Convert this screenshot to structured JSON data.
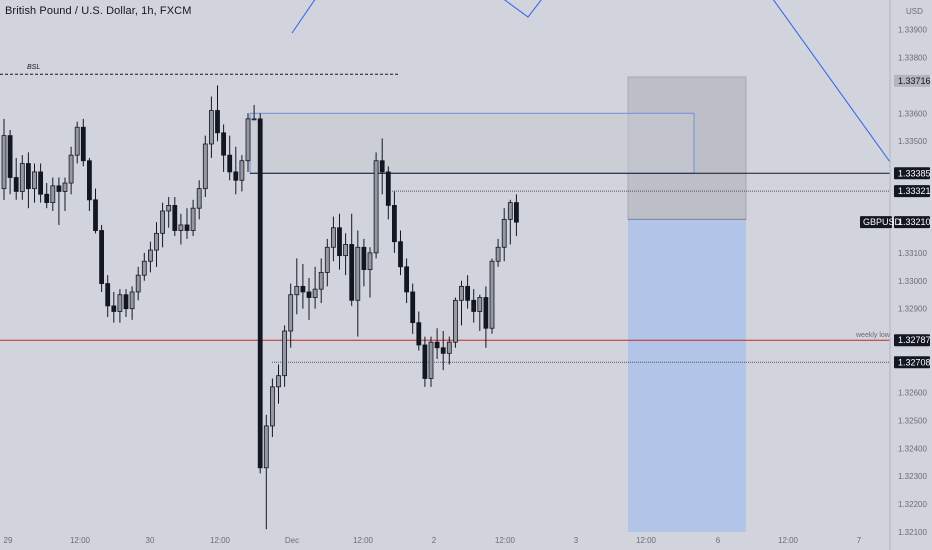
{
  "header": {
    "title": "British Pound / U.S. Dollar, 1h, FXCM"
  },
  "colors": {
    "background": "#d1d4dc",
    "candle_body": "#9598a1",
    "candle_wick": "#131722",
    "bearish_body": "#131722",
    "trendline": "#2962ff",
    "weekly_low_line": "#c62828",
    "projection_fill": "#b2c5e8",
    "zone_fill": "#c6c9d0"
  },
  "annotations": {
    "bsl_label": "BSL",
    "weekly_low_label": "weekly low"
  },
  "chart_data": {
    "type": "candlestick",
    "title": "British Pound / U.S. Dollar, 1h, FXCM",
    "symbol": "GBPUSD",
    "currency": "USD",
    "current_price": "1.33210",
    "ylim": [
      1.321,
      1.3397
    ],
    "y_ticks": [
      "1.33900",
      "1.33800",
      "1.33716",
      "1.33600",
      "1.33500",
      "1.33385",
      "1.33321",
      "1.33210",
      "1.33100",
      "1.33000",
      "1.32900",
      "1.32787",
      "1.32708",
      "1.32600",
      "1.32500",
      "1.32400",
      "1.32300",
      "1.32200",
      "1.32100"
    ],
    "x_ticks": [
      "29",
      "12:00",
      "30",
      "12:00",
      "Dec",
      "12:00",
      "2",
      "12:00",
      "3",
      "12:00",
      "6",
      "12:00",
      "7"
    ],
    "price_labels": [
      {
        "value": "1.33716",
        "style": "gray"
      },
      {
        "value": "1.33385",
        "style": "dark"
      },
      {
        "value": "1.33321",
        "style": "dark"
      },
      {
        "value": "1.33210",
        "style": "dark",
        "prefix": "GBPUSD"
      },
      {
        "value": "1.32787",
        "style": "dark"
      },
      {
        "value": "1.32708",
        "style": "dark"
      }
    ],
    "levels": {
      "bsl": 1.3374,
      "zone_top": 1.336,
      "zone_bottom": 1.33385,
      "line_high": 1.33385,
      "dotted_high": 1.33321,
      "weekly_low": 1.32787,
      "dotted_low": 1.32708,
      "projection_top": 1.3373,
      "projection_entry": 1.3322,
      "projection_bottom": 1.321
    },
    "candles": [
      [
        1.3333,
        1.3358,
        1.3329,
        1.3352
      ],
      [
        1.3352,
        1.3354,
        1.3331,
        1.3337
      ],
      [
        1.3337,
        1.3344,
        1.3329,
        1.3332
      ],
      [
        1.3332,
        1.3345,
        1.3329,
        1.3342
      ],
      [
        1.3342,
        1.3346,
        1.3326,
        1.3333
      ],
      [
        1.3333,
        1.3342,
        1.3328,
        1.3339
      ],
      [
        1.3339,
        1.3342,
        1.3328,
        1.3331
      ],
      [
        1.3331,
        1.3335,
        1.3326,
        1.3328
      ],
      [
        1.3328,
        1.3337,
        1.3325,
        1.3334
      ],
      [
        1.3334,
        1.3337,
        1.332,
        1.3332
      ],
      [
        1.3332,
        1.3337,
        1.3325,
        1.3335
      ],
      [
        1.3335,
        1.3348,
        1.3331,
        1.3345
      ],
      [
        1.3345,
        1.3357,
        1.3342,
        1.3355
      ],
      [
        1.3355,
        1.3358,
        1.3341,
        1.3343
      ],
      [
        1.3343,
        1.3344,
        1.3325,
        1.3329
      ],
      [
        1.3329,
        1.3333,
        1.3317,
        1.3318
      ],
      [
        1.3318,
        1.332,
        1.3296,
        1.3299
      ],
      [
        1.3299,
        1.3302,
        1.3287,
        1.3291
      ],
      [
        1.3291,
        1.3296,
        1.3285,
        1.3289
      ],
      [
        1.3289,
        1.3297,
        1.3285,
        1.3295
      ],
      [
        1.3295,
        1.3297,
        1.3287,
        1.329
      ],
      [
        1.329,
        1.3298,
        1.3286,
        1.3296
      ],
      [
        1.3296,
        1.3305,
        1.3293,
        1.3302
      ],
      [
        1.3302,
        1.331,
        1.33,
        1.3307
      ],
      [
        1.3307,
        1.3314,
        1.3303,
        1.3311
      ],
      [
        1.3311,
        1.3321,
        1.3305,
        1.3317
      ],
      [
        1.3317,
        1.3328,
        1.3312,
        1.3325
      ],
      [
        1.3325,
        1.333,
        1.3319,
        1.3327
      ],
      [
        1.3327,
        1.333,
        1.3316,
        1.3318
      ],
      [
        1.3318,
        1.3324,
        1.3313,
        1.332
      ],
      [
        1.332,
        1.3326,
        1.3315,
        1.3318
      ],
      [
        1.3318,
        1.3329,
        1.3316,
        1.3326
      ],
      [
        1.3326,
        1.3336,
        1.3322,
        1.3333
      ],
      [
        1.3333,
        1.3352,
        1.333,
        1.3349
      ],
      [
        1.3349,
        1.3366,
        1.3344,
        1.3361
      ],
      [
        1.3361,
        1.337,
        1.335,
        1.3353
      ],
      [
        1.3353,
        1.3356,
        1.3339,
        1.3345
      ],
      [
        1.3345,
        1.3352,
        1.3336,
        1.3339
      ],
      [
        1.3339,
        1.3348,
        1.3331,
        1.3336
      ],
      [
        1.3336,
        1.3345,
        1.3332,
        1.3343
      ],
      [
        1.3343,
        1.336,
        1.3339,
        1.3358
      ],
      [
        1.3358,
        1.3363,
        1.3358,
        1.3358
      ],
      [
        1.3358,
        1.336,
        1.3231,
        1.3233
      ],
      [
        1.3233,
        1.3252,
        1.3211,
        1.3248
      ],
      [
        1.3248,
        1.3265,
        1.3244,
        1.3262
      ],
      [
        1.3262,
        1.327,
        1.3256,
        1.3266
      ],
      [
        1.3266,
        1.3284,
        1.3262,
        1.3282
      ],
      [
        1.3282,
        1.3299,
        1.3276,
        1.3295
      ],
      [
        1.3295,
        1.3308,
        1.3288,
        1.3298
      ],
      [
        1.3298,
        1.3306,
        1.329,
        1.3296
      ],
      [
        1.3296,
        1.3301,
        1.3286,
        1.3294
      ],
      [
        1.3294,
        1.3305,
        1.329,
        1.3297
      ],
      [
        1.3297,
        1.3308,
        1.3292,
        1.3303
      ],
      [
        1.3303,
        1.3315,
        1.3298,
        1.3312
      ],
      [
        1.3312,
        1.3323,
        1.3307,
        1.3319
      ],
      [
        1.3319,
        1.3324,
        1.3304,
        1.3309
      ],
      [
        1.3309,
        1.3317,
        1.3302,
        1.3313
      ],
      [
        1.3313,
        1.3324,
        1.3291,
        1.3293
      ],
      [
        1.3293,
        1.3318,
        1.328,
        1.3312
      ],
      [
        1.3312,
        1.3315,
        1.3298,
        1.3304
      ],
      [
        1.3304,
        1.3312,
        1.3294,
        1.331
      ],
      [
        1.331,
        1.3346,
        1.3308,
        1.3343
      ],
      [
        1.3343,
        1.3351,
        1.3331,
        1.3339
      ],
      [
        1.3339,
        1.3341,
        1.3322,
        1.3327
      ],
      [
        1.3327,
        1.3332,
        1.331,
        1.3314
      ],
      [
        1.3314,
        1.3318,
        1.3302,
        1.3305
      ],
      [
        1.3305,
        1.3308,
        1.3292,
        1.3296
      ],
      [
        1.3296,
        1.3299,
        1.3281,
        1.3285
      ],
      [
        1.3285,
        1.3289,
        1.3275,
        1.3277
      ],
      [
        1.3277,
        1.328,
        1.3262,
        1.3265
      ],
      [
        1.3265,
        1.328,
        1.3262,
        1.3278
      ],
      [
        1.3278,
        1.3283,
        1.3272,
        1.3276
      ],
      [
        1.3276,
        1.3282,
        1.3268,
        1.3274
      ],
      [
        1.3274,
        1.328,
        1.327,
        1.3278
      ],
      [
        1.3278,
        1.3294,
        1.3276,
        1.3293
      ],
      [
        1.3293,
        1.33,
        1.3284,
        1.3298
      ],
      [
        1.3298,
        1.3302,
        1.329,
        1.3293
      ],
      [
        1.3293,
        1.3297,
        1.3285,
        1.3289
      ],
      [
        1.3289,
        1.3295,
        1.3282,
        1.3294
      ],
      [
        1.3294,
        1.3298,
        1.3276,
        1.3283
      ],
      [
        1.3283,
        1.3308,
        1.3281,
        1.3307
      ],
      [
        1.3307,
        1.3315,
        1.3305,
        1.3312
      ],
      [
        1.3312,
        1.3326,
        1.3307,
        1.3322
      ],
      [
        1.3322,
        1.3329,
        1.3313,
        1.3328
      ],
      [
        1.3328,
        1.3331,
        1.3316,
        1.3321
      ]
    ]
  }
}
